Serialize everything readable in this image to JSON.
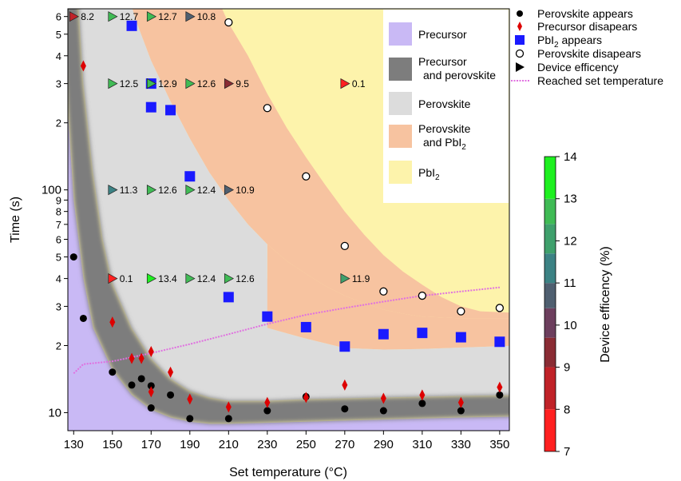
{
  "chart_data": {
    "type": "scatter",
    "xlabel": "Set temperature (°C)",
    "ylabel": "Time (s)",
    "xlim": [
      127,
      355
    ],
    "ylim": [
      8.3,
      650
    ],
    "yscale": "log",
    "x_ticks": [
      130,
      150,
      170,
      190,
      210,
      230,
      250,
      270,
      290,
      310,
      330,
      350
    ],
    "y_tick_labels": [
      {
        "v": 10,
        "t": "10"
      },
      {
        "v": 20,
        "t": "2"
      },
      {
        "v": 30,
        "t": "3"
      },
      {
        "v": 40,
        "t": "4"
      },
      {
        "v": 50,
        "t": "5"
      },
      {
        "v": 60,
        "t": "6"
      },
      {
        "v": 70,
        "t": "7"
      },
      {
        "v": 80,
        "t": "8"
      },
      {
        "v": 90,
        "t": "9"
      },
      {
        "v": 100,
        "t": "100"
      },
      {
        "v": 200,
        "t": "2"
      },
      {
        "v": 300,
        "t": "3"
      },
      {
        "v": 400,
        "t": "4"
      },
      {
        "v": 500,
        "t": "5"
      },
      {
        "v": 600,
        "t": "6"
      }
    ],
    "regions": [
      {
        "name": "Precursor",
        "color": "#c9b9f5"
      },
      {
        "name": "Precursor and perovskite",
        "color": "#7d7d7d"
      },
      {
        "name": "Perovskite",
        "color": "#dcdcdc"
      },
      {
        "name": "Perovskite and PbI2",
        "color": "#f7c3a0"
      },
      {
        "name": "PbI2",
        "color": "#fdf3ab"
      }
    ],
    "region_legend": [
      {
        "label": "Precursor",
        "color": "#c9b9f5"
      },
      {
        "label": "Precursor",
        "label2": "and perovskite",
        "color": "#7d7d7d"
      },
      {
        "label": "Perovskite",
        "color": "#dcdcdc"
      },
      {
        "label": "Perovskite",
        "label2": "and PbI",
        "sub2": "2",
        "color": "#f7c3a0"
      },
      {
        "label": "PbI",
        "sub": "2",
        "color": "#fdf3ab"
      }
    ],
    "series_legend": [
      {
        "marker": "dot",
        "label": "Perovskite appears"
      },
      {
        "marker": "diamond",
        "label": "Precursor disapears"
      },
      {
        "marker": "square",
        "label": "PbI",
        "sub": "2",
        "label_after": " appears"
      },
      {
        "marker": "circle",
        "label": "Perovskite disapears"
      },
      {
        "marker": "triangle",
        "label": "Device efficency"
      },
      {
        "marker": "line",
        "label": "Reached set temperature"
      }
    ],
    "series": [
      {
        "name": "Perovskite appears",
        "marker": "dot",
        "color": "#000000",
        "points": [
          [
            130,
            50
          ],
          [
            135,
            26.5
          ],
          [
            150,
            15.2
          ],
          [
            160,
            13.3
          ],
          [
            165,
            14.2
          ],
          [
            170,
            13.2
          ],
          [
            170,
            10.5
          ],
          [
            180,
            12
          ],
          [
            190,
            9.4
          ],
          [
            210,
            9.4
          ],
          [
            230,
            10.2
          ],
          [
            250,
            11.8
          ],
          [
            270,
            10.4
          ],
          [
            290,
            10.2
          ],
          [
            310,
            11
          ],
          [
            330,
            10.2
          ],
          [
            350,
            12
          ]
        ]
      },
      {
        "name": "Precursor disapears",
        "marker": "diamond",
        "color": "#dd0000",
        "points": [
          [
            135,
            360
          ],
          [
            150,
            25.5
          ],
          [
            160,
            17.5
          ],
          [
            165,
            17.5
          ],
          [
            170,
            18.8
          ],
          [
            170,
            12.4
          ],
          [
            180,
            15.2
          ],
          [
            190,
            11.5
          ],
          [
            210,
            10.6
          ],
          [
            230,
            11.1
          ],
          [
            250,
            11.7
          ],
          [
            270,
            13.3
          ],
          [
            290,
            11.6
          ],
          [
            310,
            12
          ],
          [
            330,
            11.1
          ],
          [
            350,
            13
          ]
        ]
      },
      {
        "name": "PbI2 appears",
        "marker": "square",
        "color": "#1a1aff",
        "points": [
          [
            160,
            545
          ],
          [
            170,
            300
          ],
          [
            170,
            235
          ],
          [
            180,
            228
          ],
          [
            190,
            115
          ],
          [
            210,
            33
          ],
          [
            230,
            27
          ],
          [
            250,
            24.2
          ],
          [
            270,
            19.8
          ],
          [
            290,
            22.5
          ],
          [
            310,
            22.8
          ],
          [
            330,
            21.8
          ],
          [
            350,
            20.8
          ]
        ]
      },
      {
        "name": "Perovskite disapears",
        "marker": "circle",
        "color": "#000000",
        "points": [
          [
            210,
            565
          ],
          [
            230,
            233
          ],
          [
            250,
            115
          ],
          [
            270,
            56
          ],
          [
            290,
            35
          ],
          [
            310,
            33.5
          ],
          [
            330,
            28.5
          ],
          [
            350,
            29.5
          ]
        ]
      },
      {
        "name": "Reached set temperature",
        "marker": "line",
        "color": "#e070e0",
        "points": [
          [
            130,
            15
          ],
          [
            135,
            16.5
          ],
          [
            150,
            17
          ],
          [
            170,
            18.5
          ],
          [
            190,
            20.3
          ],
          [
            210,
            22.5
          ],
          [
            230,
            25
          ],
          [
            250,
            27.5
          ],
          [
            270,
            29.5
          ],
          [
            290,
            31.5
          ],
          [
            310,
            33.5
          ],
          [
            330,
            35
          ],
          [
            350,
            36.5
          ]
        ]
      }
    ],
    "device_efficiency": [
      {
        "x": 130,
        "y": 600,
        "value": 8.2,
        "label": "8.2"
      },
      {
        "x": 150,
        "y": 600,
        "value": 12.7,
        "label": "12.7"
      },
      {
        "x": 170,
        "y": 600,
        "value": 12.7,
        "label": "12.7"
      },
      {
        "x": 190,
        "y": 600,
        "value": 10.8,
        "label": "10.8"
      },
      {
        "x": 150,
        "y": 300,
        "value": 12.5,
        "label": "12.5"
      },
      {
        "x": 170,
        "y": 300,
        "value": 12.9,
        "label": "12.9"
      },
      {
        "x": 190,
        "y": 300,
        "value": 12.6,
        "label": "12.6"
      },
      {
        "x": 210,
        "y": 300,
        "value": 9.5,
        "label": "9.5"
      },
      {
        "x": 270,
        "y": 300,
        "value": 0.1,
        "label": "0.1"
      },
      {
        "x": 150,
        "y": 100,
        "value": 11.3,
        "label": "11.3"
      },
      {
        "x": 170,
        "y": 100,
        "value": 12.6,
        "label": "12.6"
      },
      {
        "x": 190,
        "y": 100,
        "value": 12.4,
        "label": "12.4"
      },
      {
        "x": 210,
        "y": 100,
        "value": 10.9,
        "label": "10.9"
      },
      {
        "x": 150,
        "y": 40,
        "value": 0.1,
        "label": "0.1"
      },
      {
        "x": 170,
        "y": 40,
        "value": 13.4,
        "label": "13.4"
      },
      {
        "x": 190,
        "y": 40,
        "value": 12.4,
        "label": "12.4"
      },
      {
        "x": 210,
        "y": 40,
        "value": 12.6,
        "label": "12.6"
      },
      {
        "x": 270,
        "y": 40,
        "value": 11.9,
        "label": "11.9"
      }
    ],
    "colorbar": {
      "label": "Device efficency (%)",
      "min": 7,
      "max": 14,
      "ticks": [
        7,
        8,
        9,
        10,
        11,
        12,
        13,
        14
      ],
      "bands": [
        {
          "from": 7,
          "to": 8,
          "color": "#ff2020"
        },
        {
          "from": 8,
          "to": 9,
          "color": "#c02228"
        },
        {
          "from": 9,
          "to": 9.7,
          "color": "#8a2c34"
        },
        {
          "from": 9.7,
          "to": 10.4,
          "color": "#6d3f5e"
        },
        {
          "from": 10.4,
          "to": 11,
          "color": "#4f5f70"
        },
        {
          "from": 11,
          "to": 11.7,
          "color": "#3c8284"
        },
        {
          "from": 11.7,
          "to": 12.4,
          "color": "#3fa06c"
        },
        {
          "from": 12.4,
          "to": 13,
          "color": "#40bb55"
        },
        {
          "from": 13,
          "to": 14,
          "color": "#1ef020"
        }
      ]
    }
  }
}
